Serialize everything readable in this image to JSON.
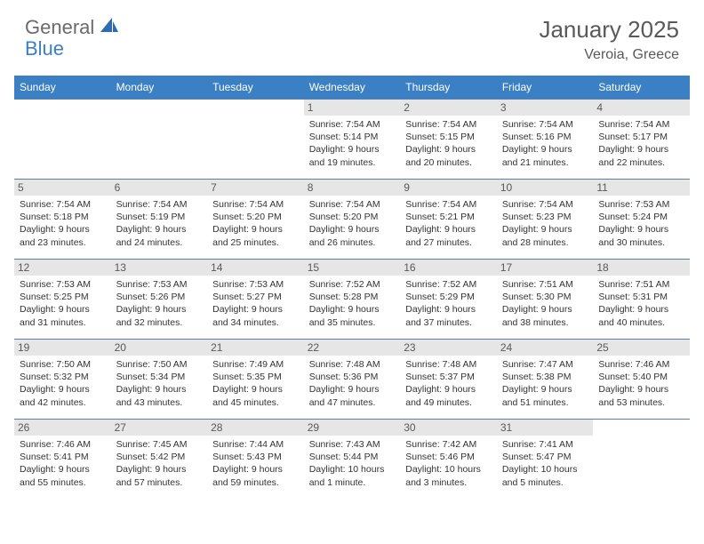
{
  "logo": {
    "general": "General",
    "blue": "Blue"
  },
  "title": "January 2025",
  "location": "Veroia, Greece",
  "colors": {
    "header_bg": "#3b7fc4",
    "header_text": "#ffffff",
    "daynum_bg": "#e6e6e6",
    "daynum_text": "#595959",
    "row_border": "#5a7fa8",
    "body_text": "#333333",
    "title_text": "#595959"
  },
  "day_headers": [
    "Sunday",
    "Monday",
    "Tuesday",
    "Wednesday",
    "Thursday",
    "Friday",
    "Saturday"
  ],
  "weeks": [
    [
      {
        "n": "",
        "lines": []
      },
      {
        "n": "",
        "lines": []
      },
      {
        "n": "",
        "lines": []
      },
      {
        "n": "1",
        "lines": [
          "Sunrise: 7:54 AM",
          "Sunset: 5:14 PM",
          "Daylight: 9 hours",
          "and 19 minutes."
        ]
      },
      {
        "n": "2",
        "lines": [
          "Sunrise: 7:54 AM",
          "Sunset: 5:15 PM",
          "Daylight: 9 hours",
          "and 20 minutes."
        ]
      },
      {
        "n": "3",
        "lines": [
          "Sunrise: 7:54 AM",
          "Sunset: 5:16 PM",
          "Daylight: 9 hours",
          "and 21 minutes."
        ]
      },
      {
        "n": "4",
        "lines": [
          "Sunrise: 7:54 AM",
          "Sunset: 5:17 PM",
          "Daylight: 9 hours",
          "and 22 minutes."
        ]
      }
    ],
    [
      {
        "n": "5",
        "lines": [
          "Sunrise: 7:54 AM",
          "Sunset: 5:18 PM",
          "Daylight: 9 hours",
          "and 23 minutes."
        ]
      },
      {
        "n": "6",
        "lines": [
          "Sunrise: 7:54 AM",
          "Sunset: 5:19 PM",
          "Daylight: 9 hours",
          "and 24 minutes."
        ]
      },
      {
        "n": "7",
        "lines": [
          "Sunrise: 7:54 AM",
          "Sunset: 5:20 PM",
          "Daylight: 9 hours",
          "and 25 minutes."
        ]
      },
      {
        "n": "8",
        "lines": [
          "Sunrise: 7:54 AM",
          "Sunset: 5:20 PM",
          "Daylight: 9 hours",
          "and 26 minutes."
        ]
      },
      {
        "n": "9",
        "lines": [
          "Sunrise: 7:54 AM",
          "Sunset: 5:21 PM",
          "Daylight: 9 hours",
          "and 27 minutes."
        ]
      },
      {
        "n": "10",
        "lines": [
          "Sunrise: 7:54 AM",
          "Sunset: 5:23 PM",
          "Daylight: 9 hours",
          "and 28 minutes."
        ]
      },
      {
        "n": "11",
        "lines": [
          "Sunrise: 7:53 AM",
          "Sunset: 5:24 PM",
          "Daylight: 9 hours",
          "and 30 minutes."
        ]
      }
    ],
    [
      {
        "n": "12",
        "lines": [
          "Sunrise: 7:53 AM",
          "Sunset: 5:25 PM",
          "Daylight: 9 hours",
          "and 31 minutes."
        ]
      },
      {
        "n": "13",
        "lines": [
          "Sunrise: 7:53 AM",
          "Sunset: 5:26 PM",
          "Daylight: 9 hours",
          "and 32 minutes."
        ]
      },
      {
        "n": "14",
        "lines": [
          "Sunrise: 7:53 AM",
          "Sunset: 5:27 PM",
          "Daylight: 9 hours",
          "and 34 minutes."
        ]
      },
      {
        "n": "15",
        "lines": [
          "Sunrise: 7:52 AM",
          "Sunset: 5:28 PM",
          "Daylight: 9 hours",
          "and 35 minutes."
        ]
      },
      {
        "n": "16",
        "lines": [
          "Sunrise: 7:52 AM",
          "Sunset: 5:29 PM",
          "Daylight: 9 hours",
          "and 37 minutes."
        ]
      },
      {
        "n": "17",
        "lines": [
          "Sunrise: 7:51 AM",
          "Sunset: 5:30 PM",
          "Daylight: 9 hours",
          "and 38 minutes."
        ]
      },
      {
        "n": "18",
        "lines": [
          "Sunrise: 7:51 AM",
          "Sunset: 5:31 PM",
          "Daylight: 9 hours",
          "and 40 minutes."
        ]
      }
    ],
    [
      {
        "n": "19",
        "lines": [
          "Sunrise: 7:50 AM",
          "Sunset: 5:32 PM",
          "Daylight: 9 hours",
          "and 42 minutes."
        ]
      },
      {
        "n": "20",
        "lines": [
          "Sunrise: 7:50 AM",
          "Sunset: 5:34 PM",
          "Daylight: 9 hours",
          "and 43 minutes."
        ]
      },
      {
        "n": "21",
        "lines": [
          "Sunrise: 7:49 AM",
          "Sunset: 5:35 PM",
          "Daylight: 9 hours",
          "and 45 minutes."
        ]
      },
      {
        "n": "22",
        "lines": [
          "Sunrise: 7:48 AM",
          "Sunset: 5:36 PM",
          "Daylight: 9 hours",
          "and 47 minutes."
        ]
      },
      {
        "n": "23",
        "lines": [
          "Sunrise: 7:48 AM",
          "Sunset: 5:37 PM",
          "Daylight: 9 hours",
          "and 49 minutes."
        ]
      },
      {
        "n": "24",
        "lines": [
          "Sunrise: 7:47 AM",
          "Sunset: 5:38 PM",
          "Daylight: 9 hours",
          "and 51 minutes."
        ]
      },
      {
        "n": "25",
        "lines": [
          "Sunrise: 7:46 AM",
          "Sunset: 5:40 PM",
          "Daylight: 9 hours",
          "and 53 minutes."
        ]
      }
    ],
    [
      {
        "n": "26",
        "lines": [
          "Sunrise: 7:46 AM",
          "Sunset: 5:41 PM",
          "Daylight: 9 hours",
          "and 55 minutes."
        ]
      },
      {
        "n": "27",
        "lines": [
          "Sunrise: 7:45 AM",
          "Sunset: 5:42 PM",
          "Daylight: 9 hours",
          "and 57 minutes."
        ]
      },
      {
        "n": "28",
        "lines": [
          "Sunrise: 7:44 AM",
          "Sunset: 5:43 PM",
          "Daylight: 9 hours",
          "and 59 minutes."
        ]
      },
      {
        "n": "29",
        "lines": [
          "Sunrise: 7:43 AM",
          "Sunset: 5:44 PM",
          "Daylight: 10 hours",
          "and 1 minute."
        ]
      },
      {
        "n": "30",
        "lines": [
          "Sunrise: 7:42 AM",
          "Sunset: 5:46 PM",
          "Daylight: 10 hours",
          "and 3 minutes."
        ]
      },
      {
        "n": "31",
        "lines": [
          "Sunrise: 7:41 AM",
          "Sunset: 5:47 PM",
          "Daylight: 10 hours",
          "and 5 minutes."
        ]
      },
      {
        "n": "",
        "lines": []
      }
    ]
  ]
}
